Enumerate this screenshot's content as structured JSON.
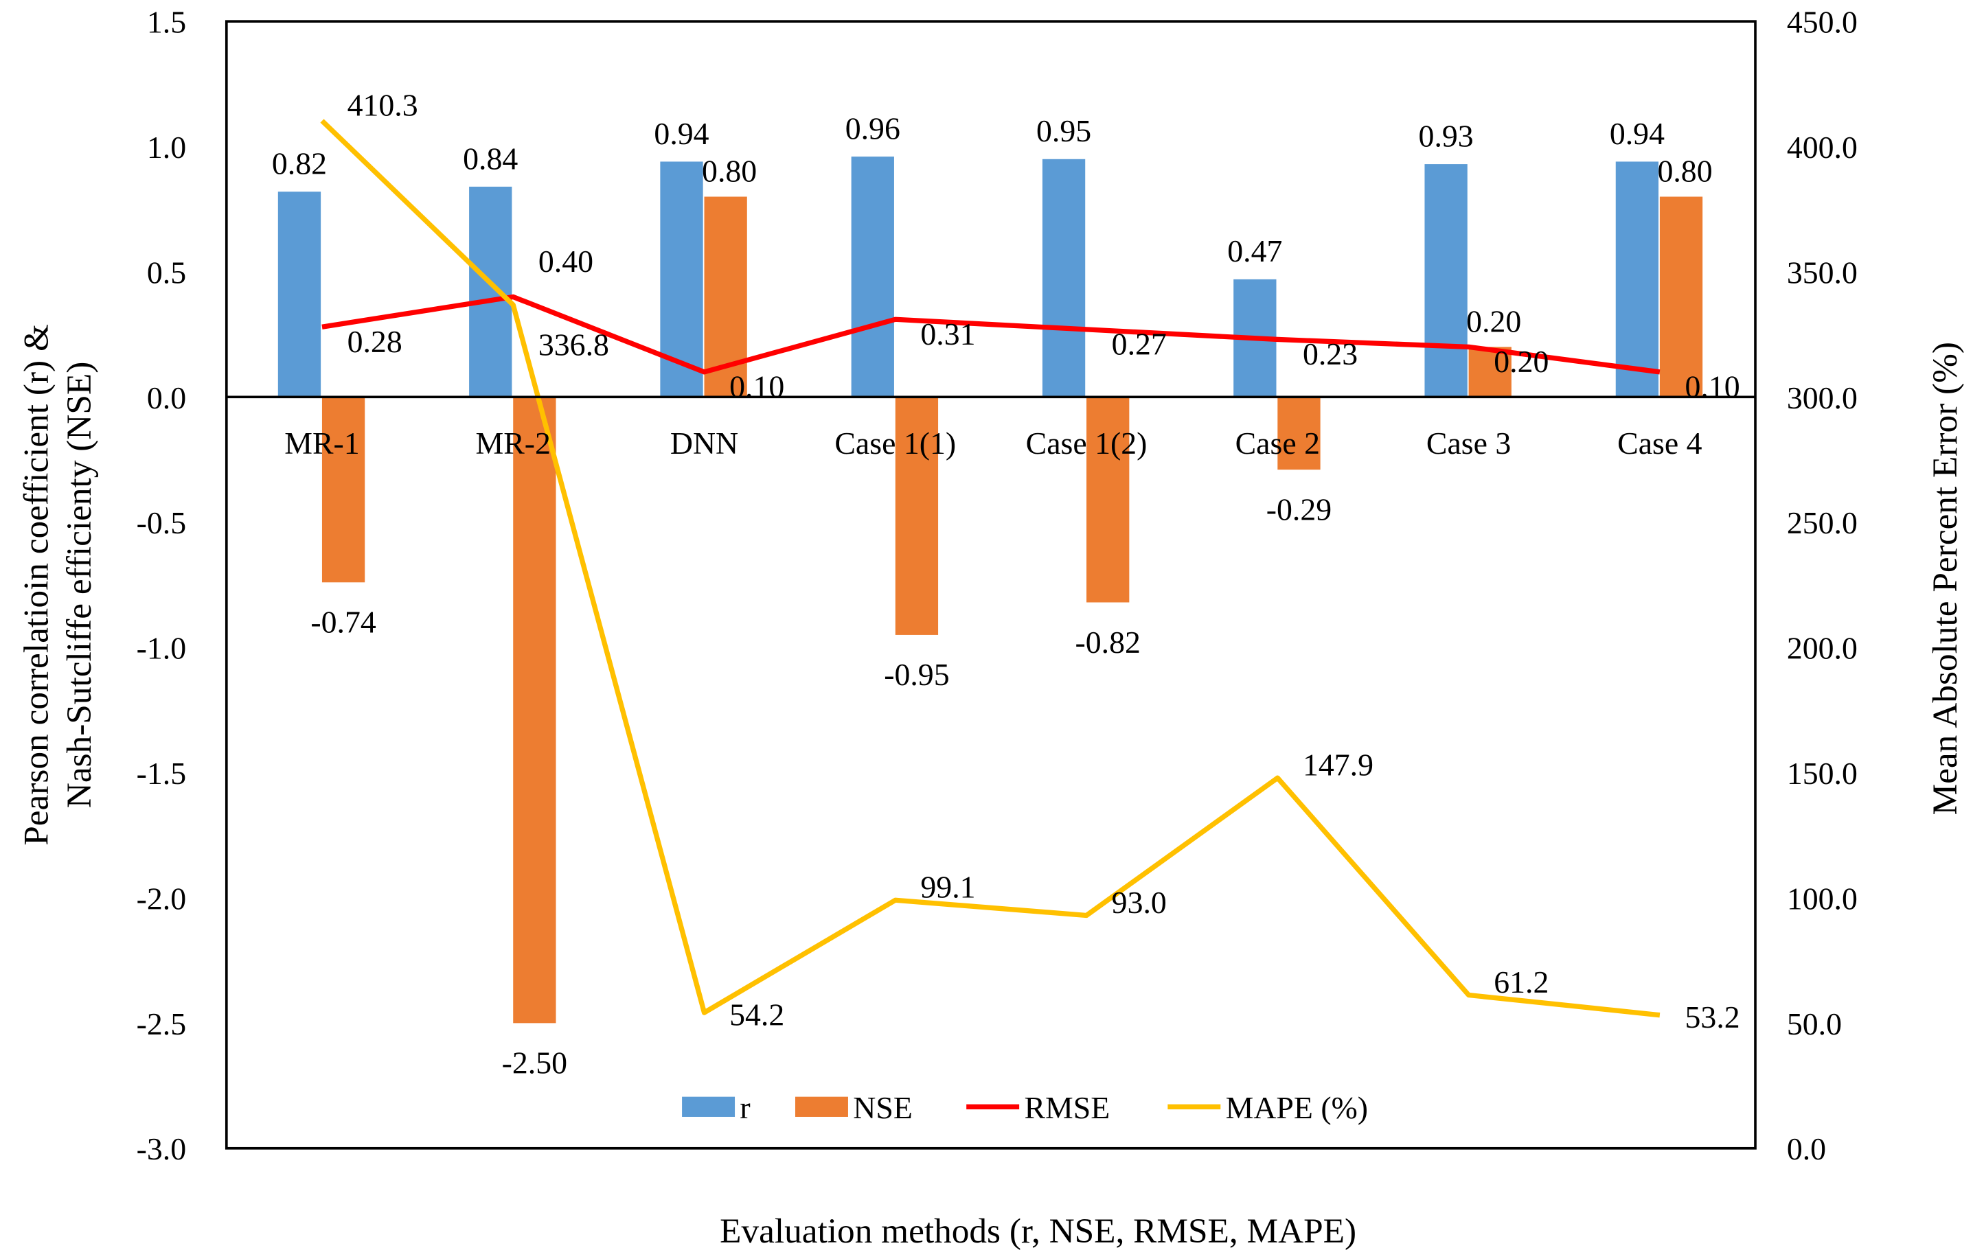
{
  "chart_data": {
    "type": "bar",
    "categories": [
      "MR-1",
      "MR-2",
      "DNN",
      "Case 1(1)",
      "Case 1(2)",
      "Case 2",
      "Case 3",
      "Case 4"
    ],
    "series": [
      {
        "name": "r",
        "type": "bar",
        "axis": "left",
        "color": "#5B9BD5",
        "values": [
          0.82,
          0.84,
          0.94,
          0.96,
          0.95,
          0.47,
          0.93,
          0.94
        ],
        "labels": [
          "0.82",
          "0.84",
          "0.94",
          "0.96",
          "0.95",
          "0.47",
          "0.93",
          "0.94"
        ]
      },
      {
        "name": "NSE",
        "type": "bar",
        "axis": "left",
        "color": "#ED7D31",
        "values": [
          -0.74,
          -2.5,
          0.8,
          -0.95,
          -0.82,
          -0.29,
          0.2,
          0.8
        ],
        "labels": [
          "-0.74",
          "-2.50",
          "0.80",
          "-0.95",
          "-0.82",
          "-0.29",
          "0.20",
          "0.80"
        ]
      },
      {
        "name": "RMSE",
        "type": "line",
        "axis": "left",
        "color": "#FF0000",
        "values": [
          0.28,
          0.4,
          0.1,
          0.31,
          0.27,
          0.23,
          0.2,
          0.1
        ],
        "labels": [
          "0.28",
          "0.40",
          "0.10",
          "0.31",
          "0.27",
          "0.23",
          "0.20",
          "0.10"
        ]
      },
      {
        "name": "MAPE (%)",
        "type": "line",
        "axis": "right",
        "color": "#FFC000",
        "values": [
          410.3,
          336.8,
          54.2,
          99.1,
          93.0,
          147.9,
          61.2,
          53.2
        ],
        "labels": [
          "410.3",
          "336.8",
          "54.2",
          "99.1",
          "93.0",
          "147.9",
          "61.2",
          "53.2"
        ]
      }
    ],
    "xlabel": "Evaluation methods (r, NSE, RMSE, MAPE)",
    "ylabel_left": [
      "Pearson correlatioin coefficient (r) &",
      "Nash-Sutcliffe efficienty (NSE)"
    ],
    "ylabel_right": "Mean Absolute Percent Error (%)",
    "ylim_left": [
      -3.0,
      1.5
    ],
    "ylim_right": [
      0,
      450
    ],
    "yticks_left": [
      "1.5",
      "1.0",
      "0.5",
      "0.0",
      "-0.5",
      "-1.0",
      "-1.5",
      "-2.0",
      "-2.5",
      "-3.0"
    ],
    "yticks_right": [
      "450.0",
      "400.0",
      "350.0",
      "300.0",
      "250.0",
      "200.0",
      "150.0",
      "100.0",
      "50.0",
      "0.0"
    ],
    "legend": [
      "r",
      "NSE",
      "RMSE",
      "MAPE (%)"
    ],
    "legend_position": "bottom-center",
    "grid": false
  }
}
